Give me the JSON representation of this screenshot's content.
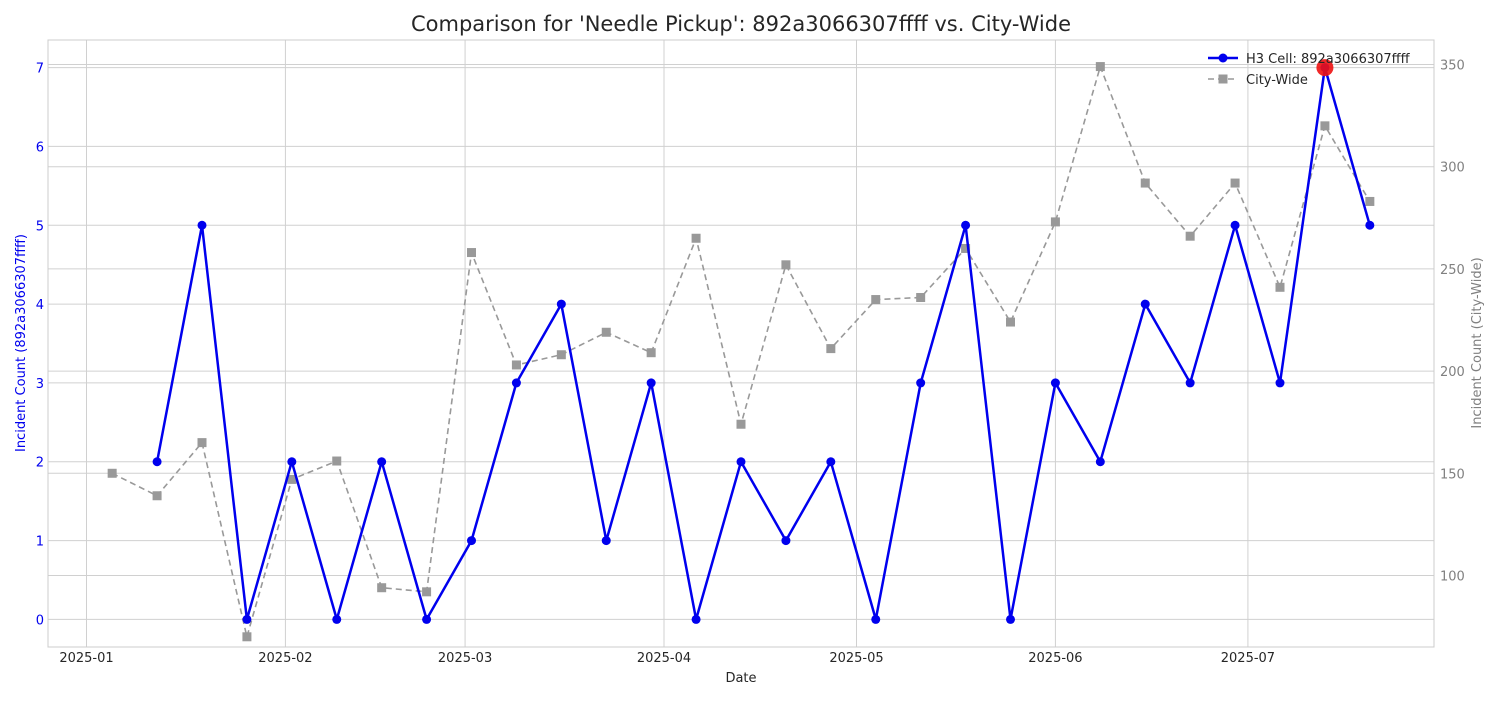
{
  "chart_data": {
    "type": "line",
    "title": "Comparison for 'Needle Pickup': 892a3066307ffff vs. City-Wide",
    "xlabel": "Date",
    "ylabel_left": "Incident Count (892a3066307ffff)",
    "ylabel_right": "Incident Count (City-Wide)",
    "grid": true,
    "legend_position": "top-right",
    "x_ticks": [
      "2025-01",
      "2025-02",
      "2025-03",
      "2025-04",
      "2025-05",
      "2025-06",
      "2025-07"
    ],
    "x_range": [
      "2024-12-26",
      "2025-07-30"
    ],
    "ylim_left": [
      -0.35,
      7.35
    ],
    "ylim_right": [
      65,
      362
    ],
    "y_ticks_left": [
      "0",
      "1",
      "2",
      "3",
      "4",
      "5",
      "6",
      "7"
    ],
    "y_ticks_right": [
      "100",
      "150",
      "200",
      "250",
      "300",
      "350"
    ],
    "series": [
      {
        "name": "H3 Cell: 892a3066307ffff",
        "axis": "left",
        "color": "#0000ee",
        "style": "solid",
        "marker": "circle",
        "points": [
          {
            "x": "2025-01-12",
            "y": 2
          },
          {
            "x": "2025-01-19",
            "y": 5
          },
          {
            "x": "2025-01-26",
            "y": 0
          },
          {
            "x": "2025-02-02",
            "y": 2
          },
          {
            "x": "2025-02-09",
            "y": 0
          },
          {
            "x": "2025-02-16",
            "y": 2
          },
          {
            "x": "2025-02-23",
            "y": 0
          },
          {
            "x": "2025-03-02",
            "y": 1
          },
          {
            "x": "2025-03-09",
            "y": 3
          },
          {
            "x": "2025-03-16",
            "y": 4
          },
          {
            "x": "2025-03-23",
            "y": 1
          },
          {
            "x": "2025-03-30",
            "y": 3
          },
          {
            "x": "2025-04-06",
            "y": 0
          },
          {
            "x": "2025-04-13",
            "y": 2
          },
          {
            "x": "2025-04-20",
            "y": 1
          },
          {
            "x": "2025-04-27",
            "y": 2
          },
          {
            "x": "2025-05-04",
            "y": 0
          },
          {
            "x": "2025-05-11",
            "y": 3
          },
          {
            "x": "2025-05-18",
            "y": 5
          },
          {
            "x": "2025-05-25",
            "y": 0
          },
          {
            "x": "2025-06-01",
            "y": 3
          },
          {
            "x": "2025-06-08",
            "y": 2
          },
          {
            "x": "2025-06-15",
            "y": 4
          },
          {
            "x": "2025-06-22",
            "y": 3
          },
          {
            "x": "2025-06-29",
            "y": 5
          },
          {
            "x": "2025-07-06",
            "y": 3
          },
          {
            "x": "2025-07-13",
            "y": 7
          },
          {
            "x": "2025-07-20",
            "y": 5
          }
        ]
      },
      {
        "name": "City-Wide",
        "axis": "right",
        "color": "#999999",
        "style": "dashed",
        "marker": "square",
        "points": [
          {
            "x": "2025-01-05",
            "y": 150
          },
          {
            "x": "2025-01-12",
            "y": 139
          },
          {
            "x": "2025-01-19",
            "y": 165
          },
          {
            "x": "2025-01-26",
            "y": 70
          },
          {
            "x": "2025-02-02",
            "y": 147
          },
          {
            "x": "2025-02-09",
            "y": 156
          },
          {
            "x": "2025-02-16",
            "y": 94
          },
          {
            "x": "2025-02-23",
            "y": 92
          },
          {
            "x": "2025-03-02",
            "y": 258
          },
          {
            "x": "2025-03-09",
            "y": 203
          },
          {
            "x": "2025-03-16",
            "y": 208
          },
          {
            "x": "2025-03-23",
            "y": 219
          },
          {
            "x": "2025-03-30",
            "y": 209
          },
          {
            "x": "2025-04-06",
            "y": 265
          },
          {
            "x": "2025-04-13",
            "y": 174
          },
          {
            "x": "2025-04-20",
            "y": 252
          },
          {
            "x": "2025-04-27",
            "y": 211
          },
          {
            "x": "2025-05-04",
            "y": 235
          },
          {
            "x": "2025-05-11",
            "y": 236
          },
          {
            "x": "2025-05-18",
            "y": 260
          },
          {
            "x": "2025-05-25",
            "y": 224
          },
          {
            "x": "2025-06-01",
            "y": 273
          },
          {
            "x": "2025-06-08",
            "y": 349
          },
          {
            "x": "2025-06-15",
            "y": 292
          },
          {
            "x": "2025-06-22",
            "y": 266
          },
          {
            "x": "2025-06-29",
            "y": 292
          },
          {
            "x": "2025-07-06",
            "y": 241
          },
          {
            "x": "2025-07-13",
            "y": 320
          },
          {
            "x": "2025-07-20",
            "y": 283
          }
        ]
      }
    ],
    "highlight": {
      "x": "2025-07-13",
      "y": 7,
      "axis": "left",
      "color": "#ee1111"
    }
  }
}
